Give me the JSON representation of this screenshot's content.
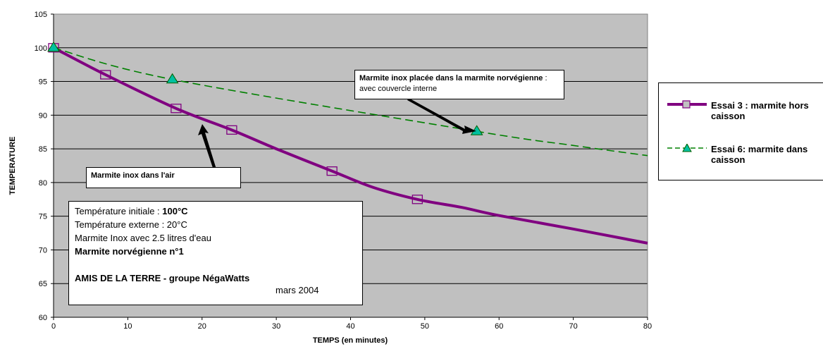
{
  "chart_data": {
    "type": "line",
    "xlabel": "TEMPS (en minutes)",
    "ylabel": "TEMPERATURE",
    "xlim": [
      0,
      80
    ],
    "ylim": [
      60,
      105
    ],
    "xticks": [
      0,
      10,
      20,
      30,
      40,
      50,
      60,
      70,
      80
    ],
    "yticks": [
      60,
      65,
      70,
      75,
      80,
      85,
      90,
      95,
      100,
      105
    ],
    "grid": "horizontal",
    "background": "#c0c0c0",
    "legend_position": "right",
    "series": [
      {
        "name": "Essai 3 : marmite hors caisson",
        "color": "#800080",
        "line_style": "solid",
        "marker": "square",
        "markers": [
          [
            0,
            100
          ],
          [
            7,
            96
          ],
          [
            16.5,
            91
          ],
          [
            24,
            87.8
          ],
          [
            37.5,
            81.7
          ],
          [
            49,
            77.5
          ]
        ],
        "curve": [
          [
            0,
            100
          ],
          [
            7,
            96
          ],
          [
            16.5,
            91
          ],
          [
            24,
            87.8
          ],
          [
            30,
            85
          ],
          [
            37.5,
            81.7
          ],
          [
            43,
            79.3
          ],
          [
            49,
            77.5
          ],
          [
            55,
            76.3
          ],
          [
            60,
            75.1
          ],
          [
            70,
            73.1
          ],
          [
            80,
            71
          ]
        ]
      },
      {
        "name": "Essai 6: marmite dans caisson",
        "color": "#008000",
        "line_style": "dashed",
        "marker": "triangle",
        "markers": [
          [
            0,
            100
          ],
          [
            16,
            95.3
          ],
          [
            57,
            87.6
          ]
        ],
        "curve": [
          [
            0,
            100
          ],
          [
            16,
            95.3
          ],
          [
            57,
            87.6
          ],
          [
            70,
            85.5
          ],
          [
            80,
            84
          ]
        ]
      }
    ],
    "annotations": {
      "air": "Marmite inox dans l'air",
      "caisson_bold": "Marmite inox placée dans la marmite norvégienne",
      "caisson_normal": " : avec couvercle interne"
    },
    "info_box": {
      "line1_label": "Température initiale : ",
      "line1_value": "100°C",
      "line2": "Température externe : 20°C",
      "line3": "Marmite Inox avec 2.5 litres d'eau",
      "line4": "Marmite norvégienne n°1",
      "line5": "AMIS DE LA TERRE - groupe NégaWatts",
      "line6": "mars 2004"
    }
  }
}
